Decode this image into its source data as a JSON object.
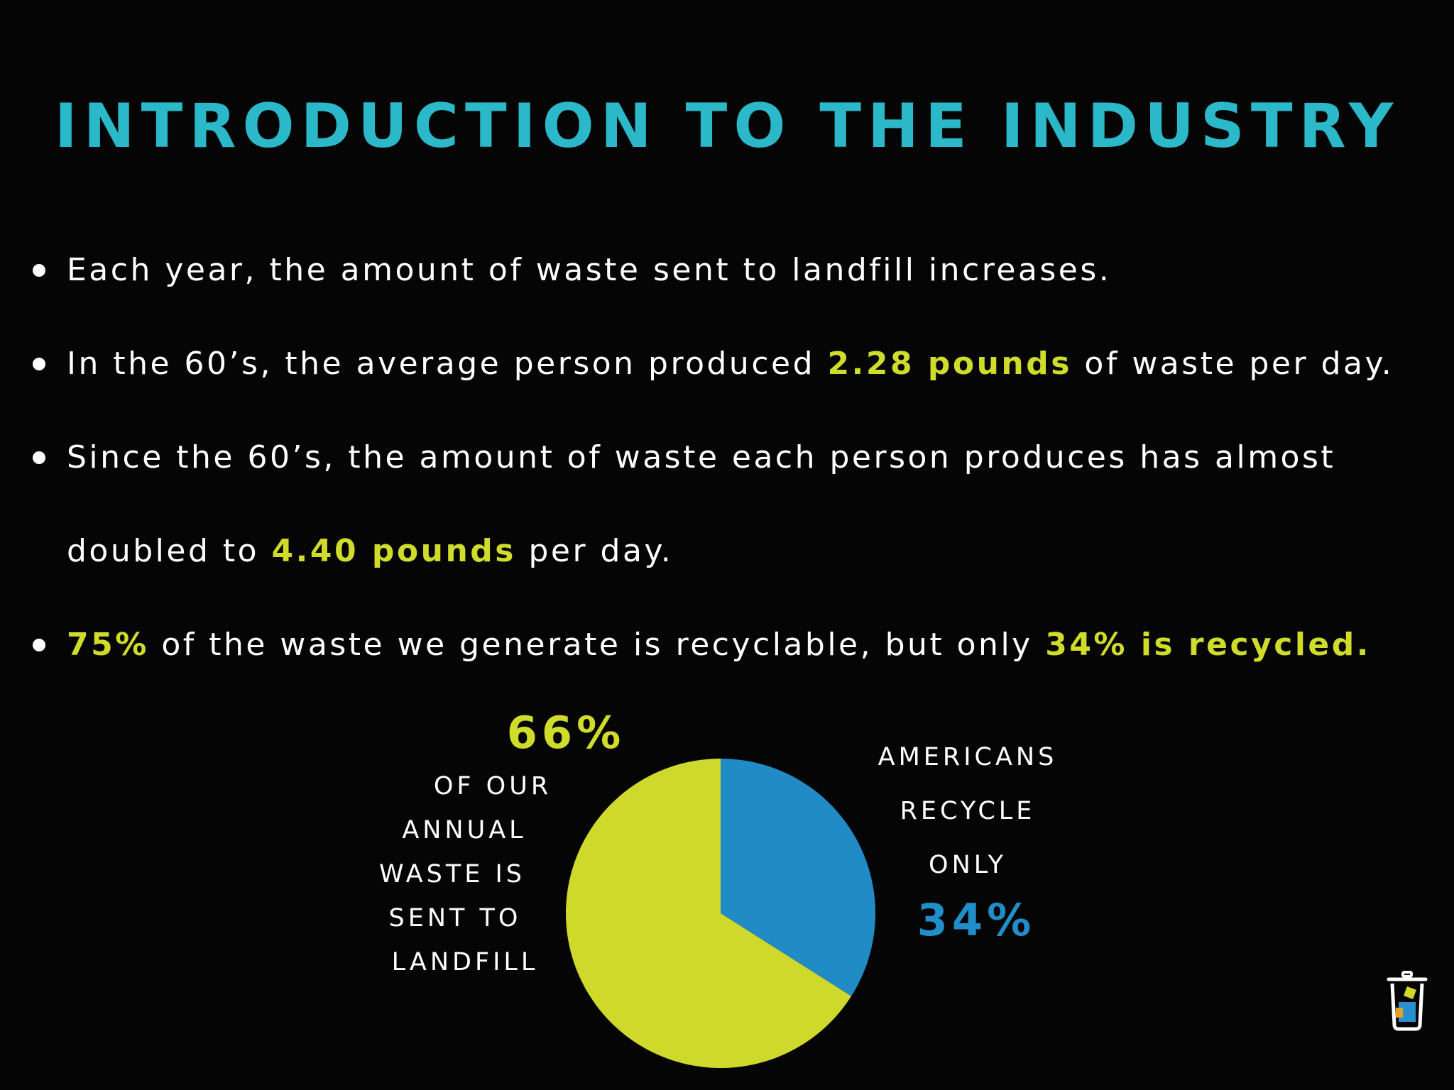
{
  "slide": {
    "title": "INTRODUCTION TO THE INDUSTRY",
    "bullets": [
      {
        "parts": [
          {
            "text": "Each year, the amount of waste sent to landfill increases.",
            "highlight": false
          }
        ]
      },
      {
        "parts": [
          {
            "text": "In the 60’s, the average person produced ",
            "highlight": false
          },
          {
            "text": "2.28 pounds",
            "highlight": true
          },
          {
            "text": " of waste per day.",
            "highlight": false
          }
        ]
      },
      {
        "parts": [
          {
            "text": "Since the 60’s, the amount of waste each person produces has almost",
            "highlight": false
          }
        ],
        "continuation": [
          {
            "text": "doubled to ",
            "highlight": false
          },
          {
            "text": "4.40 pounds",
            "highlight": true
          },
          {
            "text": " per day.",
            "highlight": false
          }
        ]
      },
      {
        "parts": [
          {
            "text": "75%",
            "highlight": true
          },
          {
            "text": " of the waste we generate is recyclable, but only ",
            "highlight": false
          },
          {
            "text": "34% is recycled.",
            "highlight": true
          }
        ]
      }
    ]
  },
  "colors": {
    "background": "#050505",
    "title": "#2bb9c9",
    "highlight": "#d0dc2a",
    "text": "#ffffff",
    "pie_landfill": "#cfd92b",
    "pie_recycled": "#218bc6",
    "recycled_label": "#1f8ec9"
  },
  "chart_data": {
    "type": "pie",
    "slices": [
      {
        "value": 66,
        "value_label": "66%",
        "caption_lines": [
          "OF OUR",
          "ANNUAL",
          "WASTE IS",
          "SENT TO",
          "LANDFILL"
        ],
        "color": "#cfd92b"
      },
      {
        "value": 34,
        "value_label": "34%",
        "caption_lines": [
          "AMERICANS",
          "RECYCLE",
          "ONLY"
        ],
        "color": "#218bc6"
      }
    ]
  },
  "logo": {
    "icon": "recycle-bin-icon"
  }
}
